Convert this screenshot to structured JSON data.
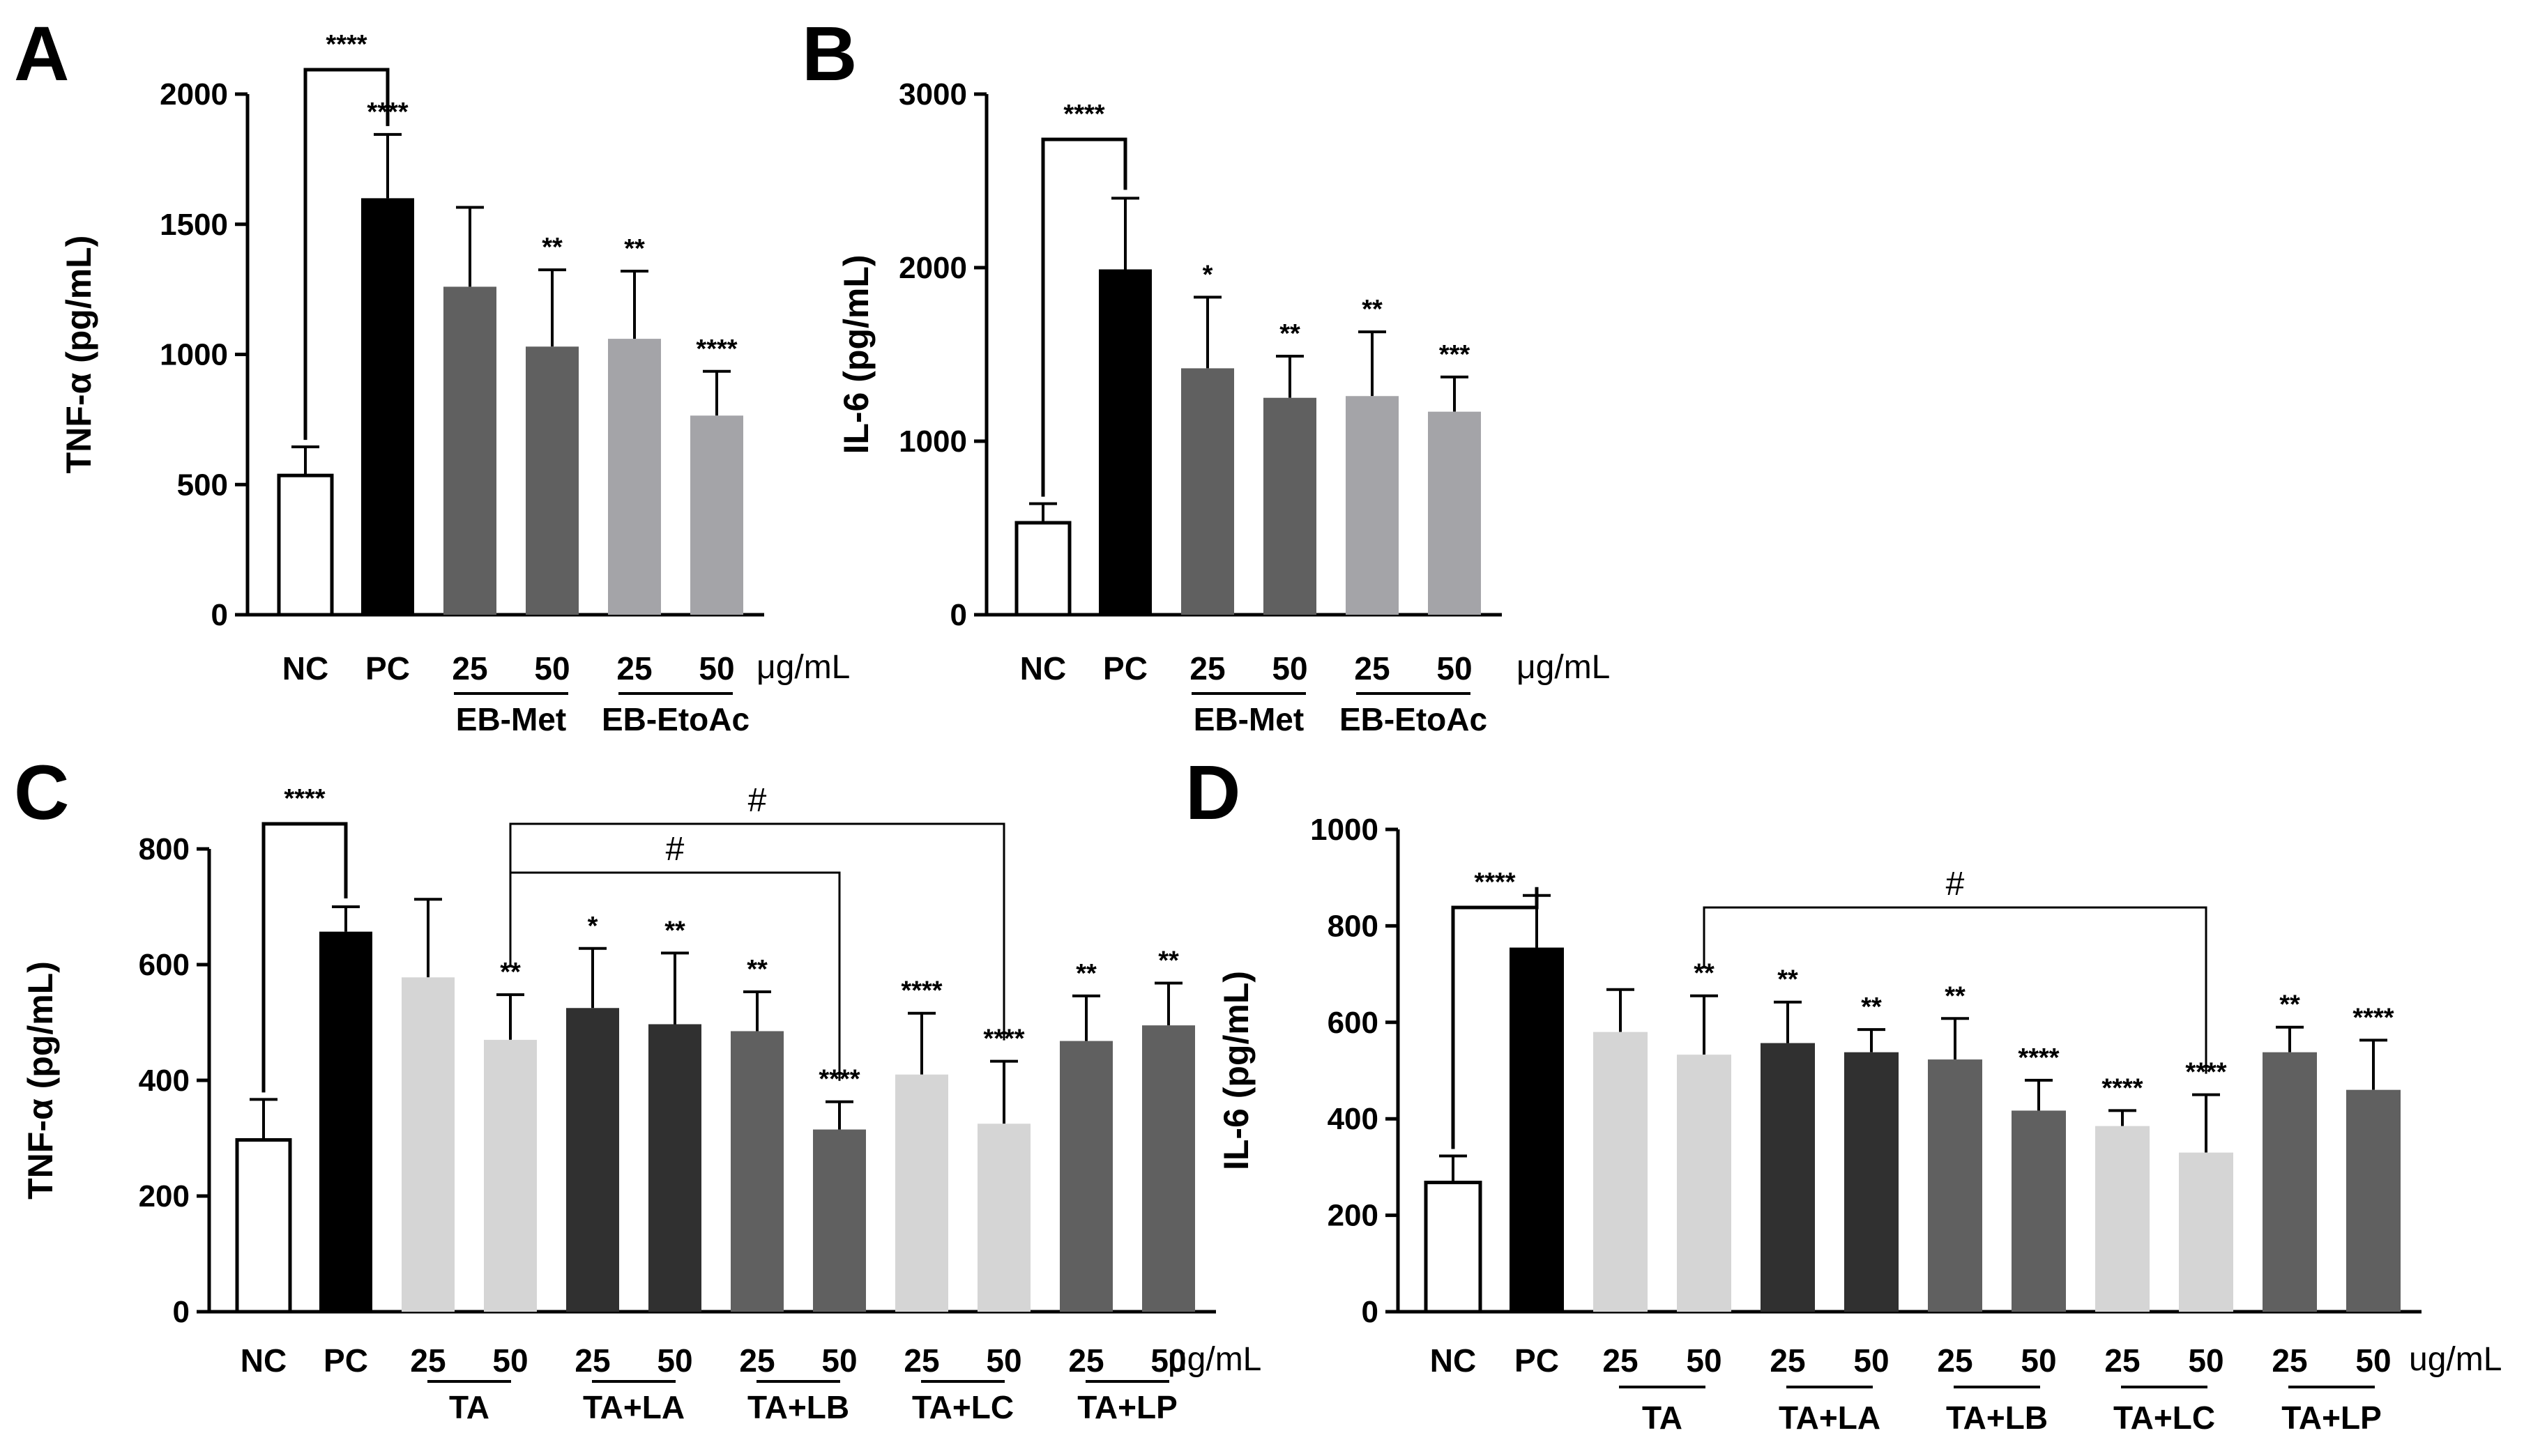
{
  "chart_data": [
    {
      "panel": "A",
      "type": "bar",
      "ylabel": "TNF-α (pg/mL)",
      "ylim": [
        0,
        2000
      ],
      "yticks": [
        0,
        500,
        1000,
        1500,
        2000
      ],
      "unit_label": "μg/mL",
      "categories": [
        "NC",
        "PC",
        "25",
        "50",
        "25",
        "50"
      ],
      "values": [
        535,
        1600,
        1260,
        1030,
        1060,
        765
      ],
      "errors": [
        110,
        245,
        305,
        295,
        260,
        170
      ],
      "fills": [
        "#ffffff",
        "#000000",
        "#606060",
        "#606060",
        "#a4a4a8",
        "#a4a4a8"
      ],
      "significance": [
        "",
        "****",
        "",
        "**",
        "**",
        "****"
      ],
      "groups": [
        {
          "label": "EB-Met",
          "from": 2,
          "to": 3
        },
        {
          "label": "EB-EtoAc",
          "from": 4,
          "to": 5
        }
      ],
      "brackets": [
        {
          "from": 0,
          "to": 1,
          "label": "****"
        }
      ]
    },
    {
      "panel": "B",
      "type": "bar",
      "ylabel": "IL-6 (pg/mL)",
      "ylim": [
        0,
        3000
      ],
      "yticks": [
        0,
        1000,
        2000,
        3000
      ],
      "unit_label": "μg/mL",
      "categories": [
        "NC",
        "PC",
        "25",
        "50",
        "25",
        "50"
      ],
      "values": [
        530,
        1990,
        1420,
        1250,
        1260,
        1170
      ],
      "errors": [
        110,
        410,
        410,
        240,
        370,
        200
      ],
      "fills": [
        "#ffffff",
        "#000000",
        "#606060",
        "#606060",
        "#a4a4a8",
        "#a4a4a8"
      ],
      "significance": [
        "",
        "",
        "*",
        "**",
        "**",
        "***"
      ],
      "groups": [
        {
          "label": "EB-Met",
          "from": 2,
          "to": 3
        },
        {
          "label": "EB-EtoAc",
          "from": 4,
          "to": 5
        }
      ],
      "brackets": [
        {
          "from": 0,
          "to": 1,
          "label": "****"
        }
      ]
    },
    {
      "panel": "C",
      "type": "bar",
      "ylabel": "TNF-α (pg/mL)",
      "ylim": [
        0,
        800
      ],
      "yticks": [
        0,
        200,
        400,
        600,
        800
      ],
      "unit_label": "μg/mL",
      "categories": [
        "NC",
        "PC",
        "25",
        "50",
        "25",
        "50",
        "25",
        "50",
        "25",
        "50",
        "25",
        "50"
      ],
      "values": [
        297,
        657,
        578,
        470,
        525,
        497,
        485,
        315,
        410,
        325,
        468,
        495
      ],
      "errors": [
        70,
        43,
        135,
        78,
        103,
        123,
        68,
        48,
        106,
        108,
        78,
        73
      ],
      "fills": [
        "#ffffff",
        "#000000",
        "#d5d5d5",
        "#d5d5d5",
        "#303030",
        "#303030",
        "#606060",
        "#606060",
        "#d5d5d5",
        "#d5d5d5",
        "#606060",
        "#606060"
      ],
      "significance": [
        "",
        "",
        "",
        "**",
        "*",
        "**",
        "**",
        "****",
        "****",
        "****",
        "**",
        "**"
      ],
      "groups": [
        {
          "label": "TA",
          "from": 2,
          "to": 3
        },
        {
          "label": "TA+LA",
          "from": 4,
          "to": 5
        },
        {
          "label": "TA+LB",
          "from": 6,
          "to": 7
        },
        {
          "label": "TA+LC",
          "from": 8,
          "to": 9
        },
        {
          "label": "TA+LP",
          "from": 10,
          "to": 11
        }
      ],
      "brackets": [
        {
          "from": 0,
          "to": 1,
          "label": "****"
        },
        {
          "from": 3,
          "to": 7,
          "label": "#"
        },
        {
          "from": 3,
          "to": 9,
          "label": "#"
        }
      ]
    },
    {
      "panel": "D",
      "type": "bar",
      "ylabel": "IL-6 (pg/mL)",
      "ylim": [
        0,
        1000
      ],
      "yticks": [
        0,
        200,
        400,
        600,
        800,
        1000
      ],
      "unit_label": "ug/mL",
      "categories": [
        "NC",
        "PC",
        "25",
        "50",
        "25",
        "50",
        "25",
        "50",
        "25",
        "50",
        "25",
        "50"
      ],
      "values": [
        268,
        755,
        580,
        533,
        557,
        538,
        523,
        417,
        385,
        330,
        538,
        460
      ],
      "errors": [
        55,
        108,
        88,
        122,
        85,
        47,
        85,
        63,
        32,
        120,
        52,
        103
      ],
      "fills": [
        "#ffffff",
        "#000000",
        "#d5d5d5",
        "#d5d5d5",
        "#303030",
        "#303030",
        "#606060",
        "#606060",
        "#d5d5d5",
        "#d5d5d5",
        "#606060",
        "#606060"
      ],
      "significance": [
        "",
        "",
        "",
        "**",
        "**",
        "**",
        "**",
        "****",
        "****",
        "****",
        "**",
        "****"
      ],
      "groups": [
        {
          "label": "TA",
          "from": 2,
          "to": 3
        },
        {
          "label": "TA+LA",
          "from": 4,
          "to": 5
        },
        {
          "label": "TA+LB",
          "from": 6,
          "to": 7
        },
        {
          "label": "TA+LC",
          "from": 8,
          "to": 9
        },
        {
          "label": "TA+LP",
          "from": 10,
          "to": 11
        }
      ],
      "brackets": [
        {
          "from": 0,
          "to": 1,
          "label": "****"
        },
        {
          "from": 3,
          "to": 9,
          "label": "#"
        }
      ]
    }
  ]
}
